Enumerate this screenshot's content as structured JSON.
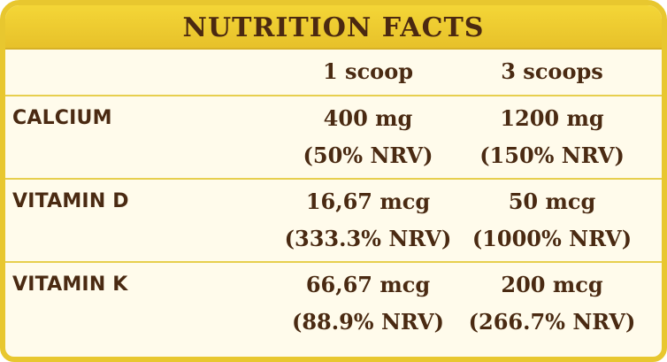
{
  "title": "NUTRITION FACTS",
  "columns": [
    "1 scoop",
    "3 scoops"
  ],
  "rows": [
    {
      "label": "CALCIUM",
      "scoop1": {
        "amount": "400 mg",
        "nrv": "(50% NRV)"
      },
      "scoop3": {
        "amount": "1200 mg",
        "nrv": "(150% NRV)"
      }
    },
    {
      "label": "VITAMIN D",
      "scoop1": {
        "amount": "16,67 mcg",
        "nrv": "(333.3% NRV)"
      },
      "scoop3": {
        "amount": "50 mcg",
        "nrv": "(1000% NRV)"
      }
    },
    {
      "label": "VITAMIN K",
      "scoop1": {
        "amount": "66,67 mcg",
        "nrv": "(88.9% NRV)"
      },
      "scoop3": {
        "amount": "200 mcg",
        "nrv": "(266.7% NRV)"
      }
    }
  ],
  "colors": {
    "border": "#e8c72f",
    "header": "#f4d637",
    "background": "#fffbeb",
    "text": "#4a2a12"
  }
}
